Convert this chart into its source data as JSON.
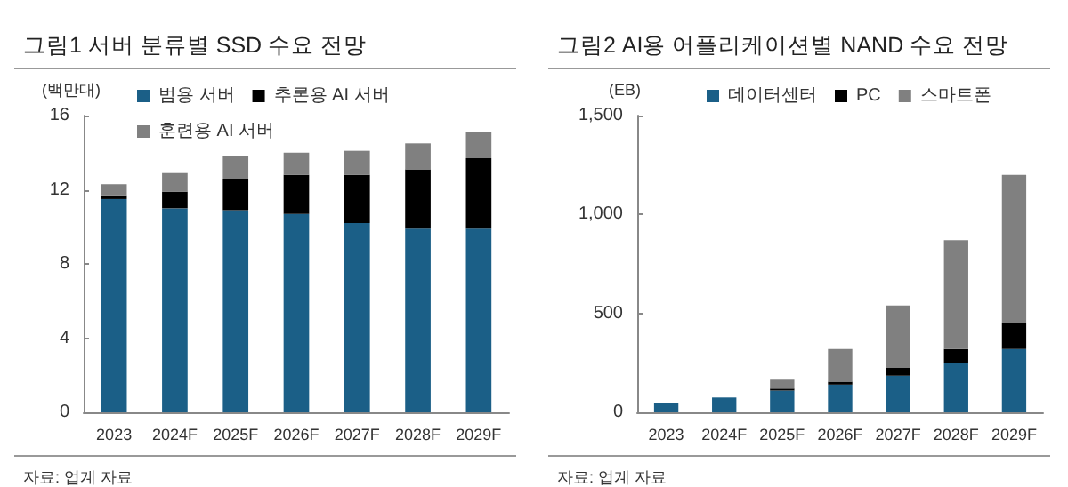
{
  "chart_data": [
    {
      "type": "bar",
      "title": "그림1 서버 분류별 SSD 수요 전망",
      "ylabel": "(백만대)",
      "categories": [
        "2023",
        "2024F",
        "2025F",
        "2026F",
        "2027F",
        "2028F",
        "2029F"
      ],
      "stacked": true,
      "series": [
        {
          "name": "범용 서버",
          "color": "#1b5f87",
          "values": [
            11.5,
            11.0,
            10.9,
            10.7,
            10.2,
            9.9,
            9.9
          ]
        },
        {
          "name": "추론용 AI 서버",
          "color": "#000000",
          "values": [
            0.2,
            0.9,
            1.7,
            2.1,
            2.6,
            3.2,
            3.8
          ]
        },
        {
          "name": "훈련용 AI 서버",
          "color": "#808080",
          "values": [
            0.6,
            1.0,
            1.2,
            1.2,
            1.3,
            1.4,
            1.4
          ]
        }
      ],
      "ylim": [
        0,
        16
      ],
      "yticks": [
        0,
        4,
        8,
        12,
        16
      ],
      "grid": false,
      "legend": "top",
      "annotations": [
        "자료: 업계 자료"
      ]
    },
    {
      "type": "bar",
      "title": "그림2 AI용 어플리케이션별 NAND 수요 전망",
      "ylabel": "(EB)",
      "categories": [
        "2023",
        "2024F",
        "2025F",
        "2026F",
        "2027F",
        "2028F",
        "2029F"
      ],
      "stacked": true,
      "series": [
        {
          "name": "데이터센터",
          "color": "#1b5f87",
          "values": [
            45,
            75,
            110,
            140,
            185,
            250,
            320
          ]
        },
        {
          "name": "PC",
          "color": "#000000",
          "values": [
            0,
            0,
            10,
            15,
            40,
            70,
            130
          ]
        },
        {
          "name": "스마트폰",
          "color": "#808080",
          "values": [
            0,
            0,
            45,
            165,
            315,
            550,
            750
          ]
        }
      ],
      "ylim": [
        0,
        1500
      ],
      "yticks": [
        0,
        500,
        {
          "value": 1000,
          "label": "1,000"
        },
        {
          "value": 1500,
          "label": "1,500"
        }
      ],
      "grid": false,
      "legend": "top",
      "annotations": [
        "자료: 업계 자료"
      ]
    }
  ]
}
